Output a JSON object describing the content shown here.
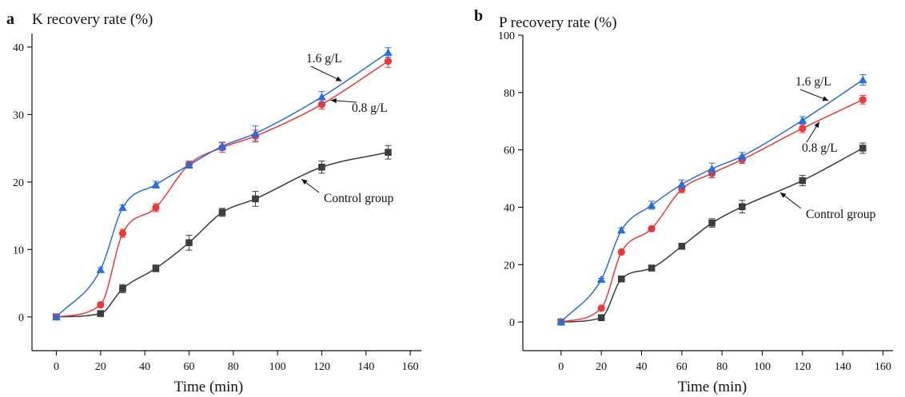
{
  "chart_data": [
    {
      "type": "line",
      "panel_label": "a",
      "ylabel": "K recovery rate (%)",
      "xlabel": "Time (min)",
      "xlim": [
        -11,
        165
      ],
      "ylim": [
        -5,
        42
      ],
      "xticks": [
        0,
        20,
        40,
        60,
        80,
        100,
        120,
        140,
        160
      ],
      "yticks": [
        0,
        10,
        20,
        30,
        40
      ],
      "x": [
        0,
        20,
        30,
        45,
        60,
        75,
        90,
        120,
        150
      ],
      "series": [
        {
          "name": "Control group",
          "color": "#3d3d3d",
          "marker": "square",
          "values": [
            0,
            0.5,
            4.2,
            7.2,
            11,
            15.5,
            17.5,
            22.2,
            24.4
          ],
          "errors": [
            0.3,
            0.3,
            0.6,
            0.5,
            1.1,
            0.6,
            1.1,
            0.9,
            1.0
          ]
        },
        {
          "name": "0.8 g/L",
          "color": "#e8393d",
          "marker": "circle",
          "values": [
            0,
            1.8,
            12.4,
            16.2,
            22.6,
            25.1,
            26.8,
            31.5,
            37.9
          ],
          "errors": [
            0.3,
            0.3,
            0.6,
            0.6,
            0.5,
            0.7,
            0.9,
            0.7,
            0.9
          ]
        },
        {
          "name": "1.6 g/L",
          "color": "#2b6fd6",
          "marker": "triangle",
          "values": [
            0,
            7,
            16.2,
            19.6,
            22.5,
            25.3,
            27.2,
            32.6,
            39.2
          ],
          "errors": [
            0.2,
            0.3,
            0.4,
            0.5,
            0.4,
            0.6,
            1.1,
            0.8,
            0.7
          ]
        }
      ],
      "annotations": [
        {
          "text": "1.6 g/L",
          "series": "1.6 g/L",
          "point_x": 130
        },
        {
          "text": "0.8 g/L",
          "series": "0.8 g/L",
          "point_x": 123
        },
        {
          "text": "Control group",
          "series": "Control group",
          "point_x": 110
        }
      ]
    },
    {
      "type": "line",
      "panel_label": "b",
      "ylabel": "P recovery rate (%)",
      "xlabel": "Time (min)",
      "xlim": [
        -19,
        165
      ],
      "ylim": [
        -10,
        100
      ],
      "xticks": [
        0,
        20,
        40,
        60,
        80,
        100,
        120,
        140,
        160
      ],
      "yticks": [
        0,
        20,
        40,
        60,
        80,
        100
      ],
      "x": [
        0,
        20,
        30,
        45,
        60,
        75,
        90,
        120,
        150
      ],
      "series": [
        {
          "name": "Control group",
          "color": "#3d3d3d",
          "marker": "square",
          "values": [
            0,
            1.5,
            15,
            18.8,
            26.4,
            34.5,
            40.2,
            49.3,
            60.6
          ],
          "errors": [
            0.3,
            0.3,
            0.5,
            0.7,
            0.8,
            1.5,
            2.2,
            1.8,
            1.8
          ]
        },
        {
          "name": "0.8 g/L",
          "color": "#e8393d",
          "marker": "circle",
          "values": [
            0,
            4.8,
            24.4,
            32.5,
            46.3,
            51.8,
            56.6,
            67.5,
            77.5
          ],
          "errors": [
            0.3,
            0.3,
            0.5,
            0.7,
            1.2,
            1.5,
            1.3,
            1.5,
            1.5
          ]
        },
        {
          "name": "1.6 g/L",
          "color": "#2b6fd6",
          "marker": "triangle",
          "values": [
            0,
            14.8,
            32,
            40.7,
            48,
            53.4,
            57.8,
            70.3,
            84.4
          ],
          "errors": [
            0.3,
            0.4,
            0.8,
            1.4,
            1.5,
            2.0,
            1.3,
            1.3,
            1.8
          ]
        }
      ],
      "annotations": [
        {
          "text": "1.6 g/L",
          "series": "1.6 g/L",
          "point_x": 134
        },
        {
          "text": "0.8 g/L",
          "series": "0.8 g/L",
          "point_x": 129
        },
        {
          "text": "Control group",
          "series": "Control group",
          "point_x": 108
        }
      ]
    }
  ]
}
